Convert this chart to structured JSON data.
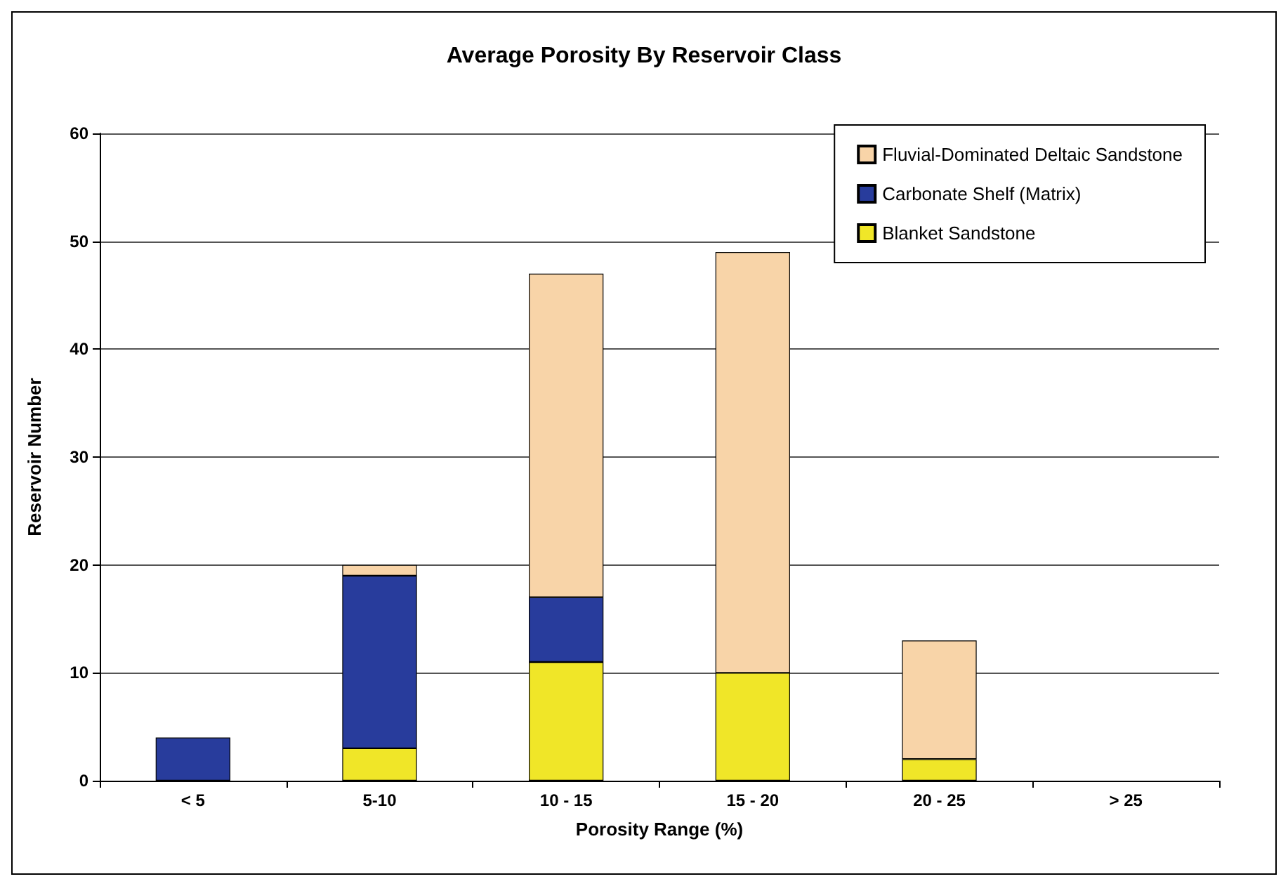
{
  "chart_data": {
    "type": "bar",
    "title": "Average Porosity By Reservoir Class",
    "xlabel": "Porosity Range (%)",
    "ylabel": "Reservoir Number",
    "categories": [
      "< 5",
      "5-10",
      "10 - 15",
      "15 - 20",
      "20 - 25",
      "> 25"
    ],
    "stacked": true,
    "series": [
      {
        "name": "Blanket Sandstone",
        "color": "#f0e628",
        "values": [
          0,
          3,
          11,
          10,
          2,
          0
        ]
      },
      {
        "name": "Carbonate Shelf (Matrix)",
        "color": "#283c9c",
        "values": [
          4,
          16,
          6,
          0,
          0,
          0
        ]
      },
      {
        "name": "Fluvial-Dominated Deltaic Sandstone",
        "color": "#f8d4a8",
        "values": [
          0,
          1,
          30,
          39,
          11,
          0
        ]
      }
    ],
    "ylim": [
      0,
      60
    ],
    "yticks": [
      0,
      10,
      20,
      30,
      40,
      50,
      60
    ],
    "grid": "y",
    "legend": "top right"
  }
}
